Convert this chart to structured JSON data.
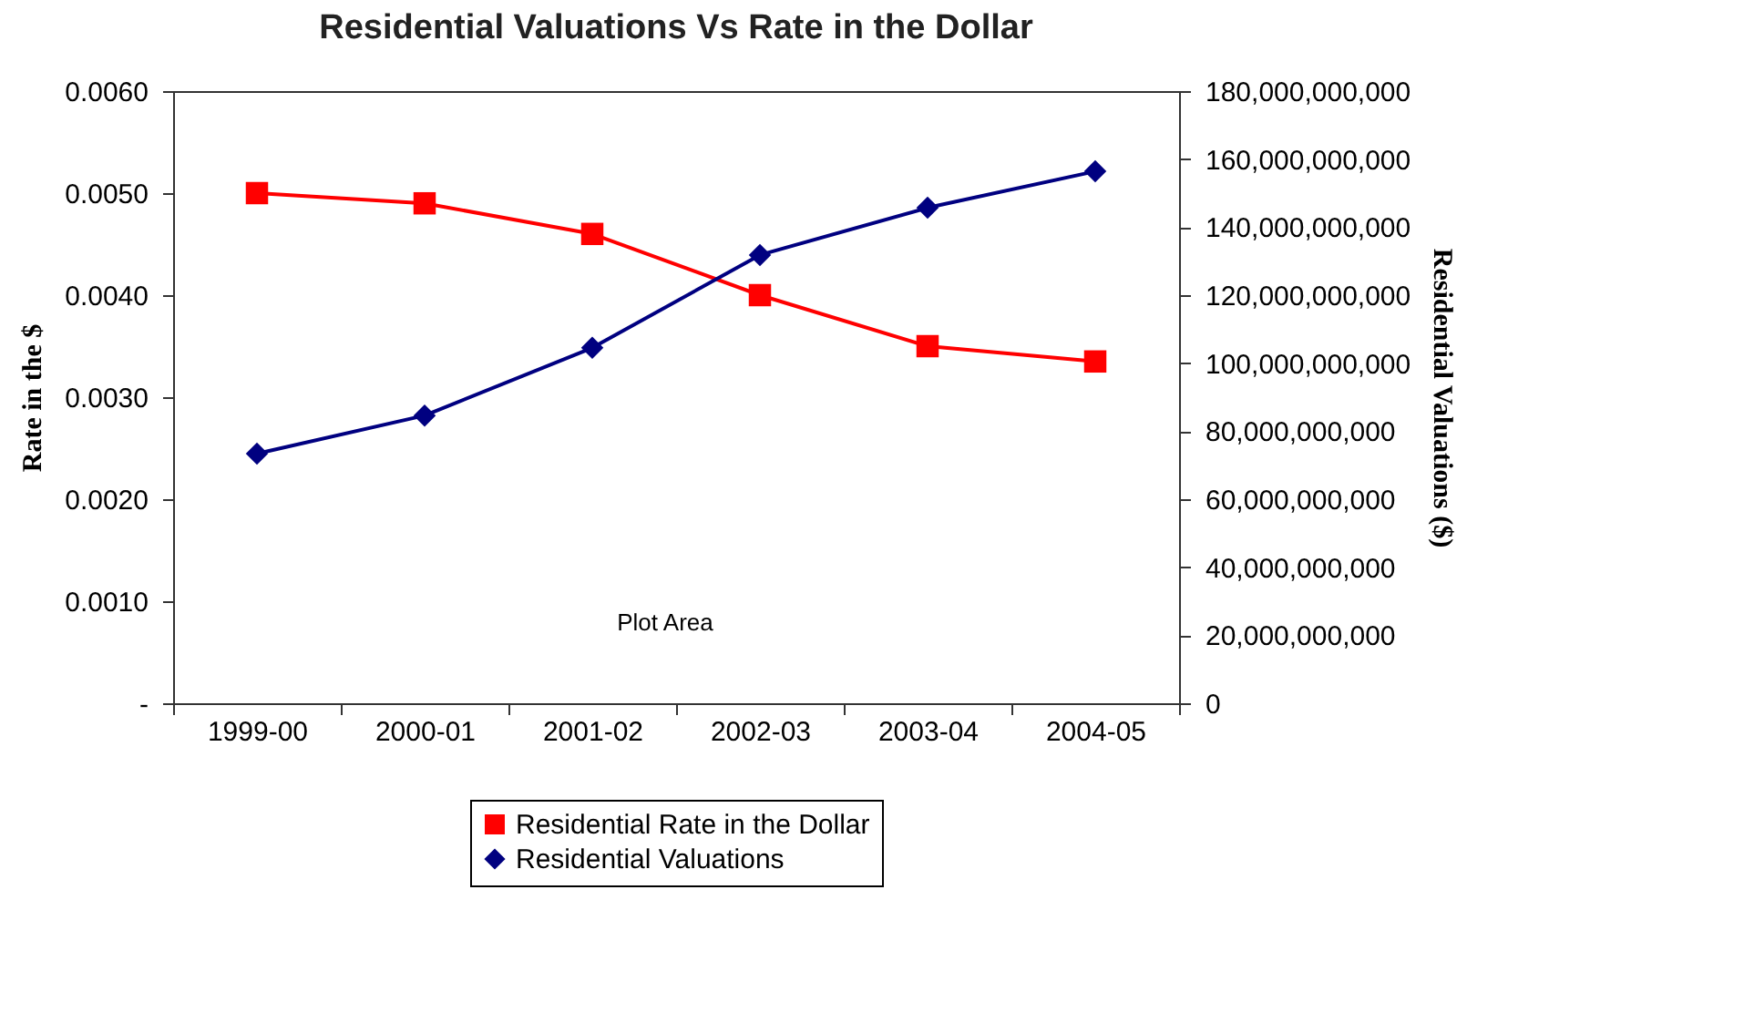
{
  "chart_data": {
    "type": "line",
    "title": "Residential Valuations Vs Rate in the Dollar",
    "ylabel": "Rate in the $",
    "y2label": "Residential Valuations ($)",
    "categories": [
      "1999-00",
      "2000-01",
      "2001-02",
      "2002-03",
      "2003-04",
      "2004-05"
    ],
    "series": [
      {
        "name": "Residential Rate in the Dollar",
        "color": "#ff0000",
        "marker": "square",
        "values": [
          0.005,
          0.0049,
          0.0046,
          0.004,
          0.0035,
          0.00335
        ]
      },
      {
        "name": "Residential Valuations",
        "color": "#000080",
        "marker": "diamond",
        "axis": "y2",
        "values": [
          73400000000,
          84600000000,
          104500000000,
          131800000000,
          145700000000,
          156400000000
        ]
      }
    ],
    "ylim": [
      0,
      0.006
    ],
    "yticks": [
      {
        "value": 0,
        "label": "-"
      },
      {
        "value": 0.001,
        "label": "0.0010"
      },
      {
        "value": 0.002,
        "label": "0.0020"
      },
      {
        "value": 0.003,
        "label": "0.0030"
      },
      {
        "value": 0.004,
        "label": "0.0040"
      },
      {
        "value": 0.005,
        "label": "0.0050"
      },
      {
        "value": 0.006,
        "label": "0.0060"
      }
    ],
    "y2lim": [
      0,
      180000000000
    ],
    "y2ticks": [
      0,
      {
        "value": 20000000000,
        "label": "20,000,000,000"
      },
      {
        "value": 40000000000,
        "label": "40,000,000,000"
      },
      {
        "value": 60000000000,
        "label": "60,000,000,000"
      },
      {
        "value": 80000000000,
        "label": "80,000,000,000"
      },
      {
        "value": 100000000000,
        "label": "100,000,000,000"
      },
      {
        "value": 120000000000,
        "label": "120,000,000,000"
      },
      {
        "value": 140000000000,
        "label": "140,000,000,000"
      },
      {
        "value": 160000000000,
        "label": "160,000,000,000"
      },
      {
        "value": 180000000000,
        "label": "180,000,000,000"
      }
    ],
    "annotations": [
      "Plot Area"
    ],
    "grid": false,
    "legend": "bottom"
  }
}
